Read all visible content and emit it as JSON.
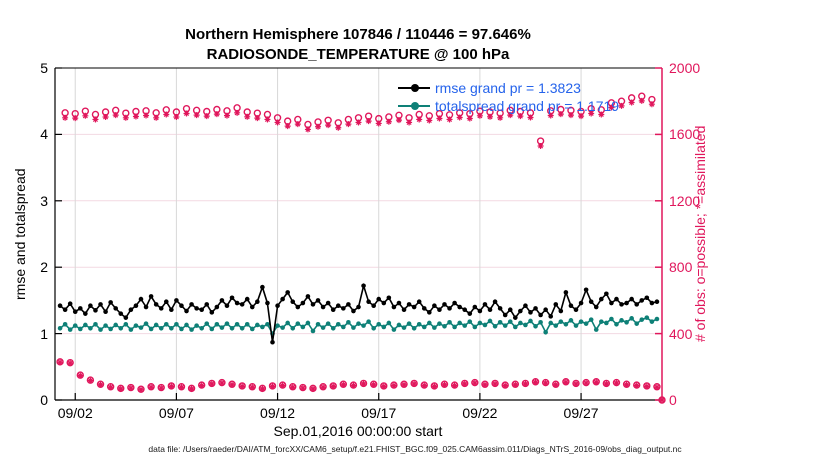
{
  "window": {
    "app": "figure"
  },
  "title": {
    "line1": "Northern Hemisphere 107846 / 110446 = 97.646%",
    "line2": "RADIOSONDE_TEMPERATURE @ 100 hPa"
  },
  "legend": {
    "items": [
      {
        "label": "rmse grand pr = 1.3823",
        "line_color": "#000000"
      },
      {
        "label": "totalspread grand pr = 1.1719",
        "line_color": "#0e8077"
      }
    ],
    "text_color": "#2563eb"
  },
  "footer": "data file: /Users/raeder/DAI/ATM_forcXX/CAM6_setup/f.e21.FHIST_BGC.f09_025.CAM6assim.011/Diags_NTrS_2016-09/obs_diag_output.nc",
  "colors": {
    "obs": "#e0175c",
    "teal": "#0e8077",
    "black": "#000000",
    "grid_vertical": "#d8d8d8",
    "grid_horizontal": "#f3d9e2",
    "legend_text": "#2563eb"
  },
  "chart_data": {
    "type": "line",
    "title": "Northern Hemisphere 107846 / 110446 = 97.646% | RADIOSONDE_TEMPERATURE @ 100 hPa",
    "xlabel": "Sep.01,2016 00:00:00 start",
    "ylabel_left": "rmse and totalspread",
    "ylabel_right": "# of obs: o=possible; *=assimilated",
    "x_domain_days": [
      0,
      30
    ],
    "ylim_left": [
      0,
      5
    ],
    "ylim_right": [
      0,
      2000
    ],
    "grid": true,
    "axes": {
      "x_ticks": [
        {
          "t": 1,
          "label": "09/02"
        },
        {
          "t": 6,
          "label": "09/07"
        },
        {
          "t": 11,
          "label": "09/12"
        },
        {
          "t": 16,
          "label": "09/17"
        },
        {
          "t": 21,
          "label": "09/22"
        },
        {
          "t": 26,
          "label": "09/27"
        }
      ],
      "yleft_ticks": [
        0,
        1,
        2,
        3,
        4,
        5
      ],
      "yright_ticks": [
        0,
        400,
        800,
        1200,
        1600,
        2000
      ]
    },
    "series": [
      {
        "name": "n_possible",
        "axis": "right",
        "marker": "circle",
        "line": false,
        "color": "#e0175c",
        "t0": 0.25,
        "dt": 0.25,
        "values": [
          230,
          1730,
          225,
          1725,
          150,
          1740,
          120,
          1720,
          95,
          1735,
          80,
          1745,
          70,
          1728,
          75,
          1738,
          65,
          1742,
          80,
          1730,
          75,
          1748,
          85,
          1735,
          80,
          1755,
          70,
          1745,
          90,
          1738,
          100,
          1750,
          105,
          1742,
          95,
          1760,
          85,
          1735,
          80,
          1728,
          70,
          1720,
          85,
          1700,
          90,
          1680,
          80,
          1690,
          75,
          1660,
          70,
          1675,
          80,
          1685,
          85,
          1670,
          95,
          1690,
          90,
          1700,
          100,
          1710,
          95,
          1695,
          85,
          1705,
          90,
          1715,
          95,
          1700,
          100,
          1720,
          90,
          1712,
          85,
          1725,
          95,
          1718,
          90,
          1730,
          100,
          1725,
          105,
          1740,
          95,
          1735,
          100,
          1728,
          90,
          1745,
          95,
          1738,
          100,
          1730,
          110,
          1560,
          105,
          1742,
          95,
          1750,
          110,
          1745,
          100,
          1738,
          105,
          1755,
          110,
          1748,
          100,
          1790,
          105,
          1800,
          95,
          1820,
          90,
          1830,
          85,
          1810,
          80,
          0
        ]
      },
      {
        "name": "n_assimilated",
        "axis": "right",
        "marker": "asterisk",
        "line": false,
        "color": "#e0175c",
        "t0": 0.25,
        "dt": 0.25,
        "values": [
          227,
          1700,
          222,
          1698,
          147,
          1712,
          117,
          1690,
          92,
          1705,
          77,
          1716,
          67,
          1700,
          72,
          1708,
          62,
          1714,
          77,
          1700,
          72,
          1720,
          82,
          1705,
          77,
          1726,
          67,
          1716,
          87,
          1710,
          97,
          1722,
          102,
          1713,
          92,
          1730,
          82,
          1706,
          77,
          1698,
          67,
          1690,
          82,
          1672,
          87,
          1650,
          77,
          1662,
          72,
          1630,
          67,
          1646,
          77,
          1656,
          82,
          1640,
          92,
          1662,
          87,
          1672,
          97,
          1680,
          92,
          1666,
          82,
          1676,
          87,
          1686,
          92,
          1672,
          97,
          1690,
          87,
          1684,
          82,
          1696,
          92,
          1690,
          87,
          1702,
          97,
          1696,
          102,
          1712,
          92,
          1706,
          97,
          1700,
          87,
          1716,
          92,
          1710,
          97,
          1702,
          107,
          1530,
          102,
          1714,
          92,
          1722,
          107,
          1716,
          97,
          1710,
          102,
          1726,
          107,
          1720,
          97,
          1762,
          102,
          1772,
          92,
          1792,
          87,
          1802,
          82,
          1782,
          77,
          0
        ]
      },
      {
        "name": "totalspread",
        "axis": "left",
        "marker": "dot",
        "line": true,
        "color": "#0e8077",
        "t0": 0.25,
        "dt": 0.25,
        "values": [
          1.08,
          1.14,
          1.06,
          1.12,
          1.07,
          1.13,
          1.08,
          1.14,
          1.06,
          1.12,
          1.07,
          1.13,
          1.08,
          1.14,
          1.06,
          1.12,
          1.09,
          1.15,
          1.07,
          1.13,
          1.08,
          1.14,
          1.08,
          1.14,
          1.07,
          1.13,
          1.06,
          1.12,
          1.08,
          1.15,
          1.07,
          1.14,
          1.09,
          1.15,
          1.08,
          1.14,
          1.08,
          1.14,
          1.07,
          1.13,
          1.1,
          1.14,
          1.0,
          1.12,
          1.09,
          1.16,
          1.08,
          1.15,
          1.1,
          1.16,
          1.04,
          1.14,
          1.09,
          1.15,
          1.08,
          1.14,
          1.1,
          1.17,
          1.09,
          1.15,
          1.12,
          1.18,
          1.08,
          1.14,
          1.1,
          1.16,
          1.06,
          1.13,
          1.09,
          1.15,
          1.08,
          1.14,
          1.1,
          1.16,
          1.09,
          1.15,
          1.11,
          1.17,
          1.1,
          1.16,
          1.12,
          1.18,
          1.1,
          1.16,
          1.13,
          1.19,
          1.11,
          1.17,
          1.12,
          1.18,
          1.1,
          1.16,
          1.13,
          1.19,
          1.11,
          1.17,
          1.02,
          1.16,
          1.12,
          1.18,
          1.14,
          1.2,
          1.12,
          1.18,
          1.15,
          1.21,
          1.06,
          1.18,
          1.16,
          1.22,
          1.14,
          1.2,
          1.17,
          1.23,
          1.15,
          1.21,
          1.24,
          1.18,
          1.22
        ]
      },
      {
        "name": "rmse",
        "axis": "left",
        "marker": "dot",
        "line": true,
        "color": "#000000",
        "t0": 0.25,
        "dt": 0.25,
        "values": [
          1.42,
          1.36,
          1.45,
          1.33,
          1.38,
          1.3,
          1.42,
          1.35,
          1.44,
          1.33,
          1.47,
          1.38,
          1.3,
          1.24,
          1.36,
          1.42,
          1.52,
          1.4,
          1.56,
          1.44,
          1.38,
          1.48,
          1.36,
          1.5,
          1.42,
          1.34,
          1.44,
          1.38,
          1.36,
          1.44,
          1.32,
          1.4,
          1.5,
          1.42,
          1.54,
          1.46,
          1.44,
          1.52,
          1.4,
          1.48,
          1.7,
          1.46,
          0.87,
          1.42,
          1.52,
          1.62,
          1.48,
          1.4,
          1.46,
          1.56,
          1.44,
          1.5,
          1.4,
          1.46,
          1.36,
          1.42,
          1.38,
          1.44,
          1.34,
          1.4,
          1.72,
          1.48,
          1.42,
          1.52,
          1.46,
          1.54,
          1.4,
          1.46,
          1.36,
          1.44,
          1.4,
          1.48,
          1.38,
          1.32,
          1.42,
          1.36,
          1.44,
          1.38,
          1.46,
          1.4,
          1.36,
          1.3,
          1.4,
          1.34,
          1.44,
          1.36,
          1.48,
          1.38,
          1.28,
          1.36,
          1.24,
          1.34,
          1.42,
          1.32,
          1.38,
          1.28,
          1.36,
          1.26,
          1.44,
          1.34,
          1.62,
          1.42,
          1.36,
          1.46,
          1.66,
          1.48,
          1.4,
          1.52,
          1.6,
          1.46,
          1.52,
          1.44,
          1.46,
          1.52,
          1.44,
          1.5,
          1.54,
          1.46,
          1.48
        ]
      }
    ]
  }
}
